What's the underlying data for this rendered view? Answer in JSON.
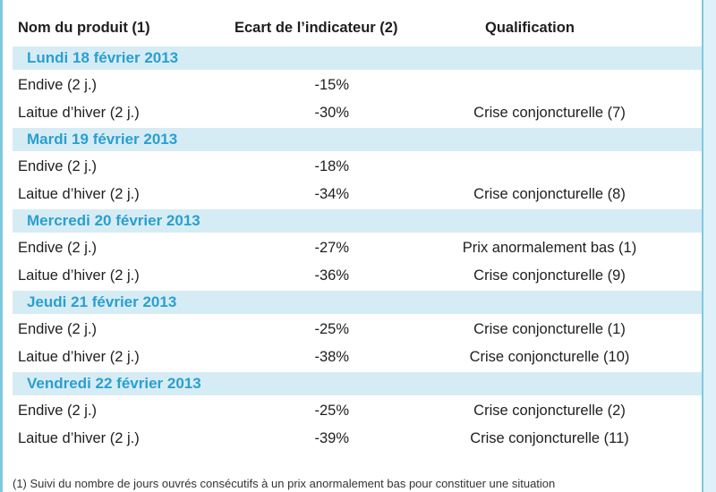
{
  "header": {
    "col_product": "Nom du produit (1)",
    "col_indicator": "Ecart de l’indicateur (2)",
    "col_qualification": "Qualification"
  },
  "days": [
    {
      "label": "Lundi 18 février 2013",
      "rows": [
        {
          "product": "Endive (2 j.)",
          "ecart": "-15%",
          "qualification": ""
        },
        {
          "product": "Laitue d’hiver (2 j.)",
          "ecart": "-30%",
          "qualification": "Crise conjoncturelle (7)"
        }
      ]
    },
    {
      "label": "Mardi 19 février 2013",
      "rows": [
        {
          "product": "Endive (2 j.)",
          "ecart": "-18%",
          "qualification": ""
        },
        {
          "product": "Laitue d’hiver (2 j.)",
          "ecart": "-34%",
          "qualification": "Crise conjoncturelle (8)"
        }
      ]
    },
    {
      "label": "Mercredi 20 février 2013",
      "rows": [
        {
          "product": "Endive (2 j.)",
          "ecart": "-27%",
          "qualification": "Prix anormalement bas (1)"
        },
        {
          "product": "Laitue d’hiver (2 j.)",
          "ecart": "-36%",
          "qualification": "Crise conjoncturelle (9)"
        }
      ]
    },
    {
      "label": "Jeudi 21 février 2013",
      "rows": [
        {
          "product": "Endive (2 j.)",
          "ecart": "-25%",
          "qualification": "Crise conjoncturelle (1)"
        },
        {
          "product": "Laitue d’hiver (2 j.)",
          "ecart": "-38%",
          "qualification": "Crise conjoncturelle (10)"
        }
      ]
    },
    {
      "label": "Vendredi 22 février 2013",
      "rows": [
        {
          "product": "Endive (2 j.)",
          "ecart": "-25%",
          "qualification": "Crise conjoncturelle (2)"
        },
        {
          "product": "Laitue d’hiver (2 j.)",
          "ecart": "-39%",
          "qualification": "Crise conjoncturelle (11)"
        }
      ]
    }
  ],
  "footnote": "(1) Suivi du nombre de jours ouvrés consécutifs à un prix anormalement bas pour constituer une situation",
  "colors": {
    "day_band_bg": "#d6ecf5",
    "day_label": "#2a9fd0",
    "frame": "#7fc9e0"
  }
}
